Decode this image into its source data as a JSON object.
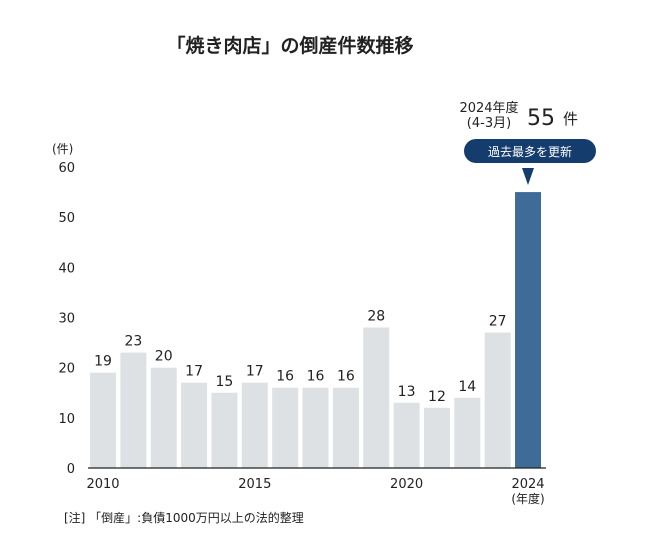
{
  "chart_data": {
    "type": "bar",
    "title": "「焼き肉店」の倒産件数推移",
    "ylabel": "(件)",
    "xlabel": "(年度)",
    "ylim": [
      0,
      60
    ],
    "yticks": [
      "0",
      "10",
      "20",
      "30",
      "40",
      "50",
      "60"
    ],
    "xticks": [
      {
        "year": 2010,
        "label": "2010"
      },
      {
        "year": 2015,
        "label": "2015"
      },
      {
        "year": 2020,
        "label": "2020"
      },
      {
        "year": 2024,
        "label": "2024"
      }
    ],
    "categories": [
      2010,
      2011,
      2012,
      2013,
      2014,
      2015,
      2016,
      2017,
      2018,
      2019,
      2020,
      2021,
      2022,
      2023,
      2024
    ],
    "values": [
      19,
      23,
      20,
      17,
      15,
      17,
      16,
      16,
      16,
      28,
      13,
      12,
      14,
      27,
      55
    ],
    "colors": {
      "normal": "#dde1e4",
      "highlight": "#3f6b98",
      "badge": "#143d6e",
      "axis": "#222222"
    },
    "annotation": {
      "period_line1": "2024年度",
      "period_line2": "(4-3月)",
      "value": "55",
      "unit": "件",
      "badge": "過去最多を更新"
    },
    "note": "[注] 「倒産」:負債1000万円以上の法的整理"
  }
}
